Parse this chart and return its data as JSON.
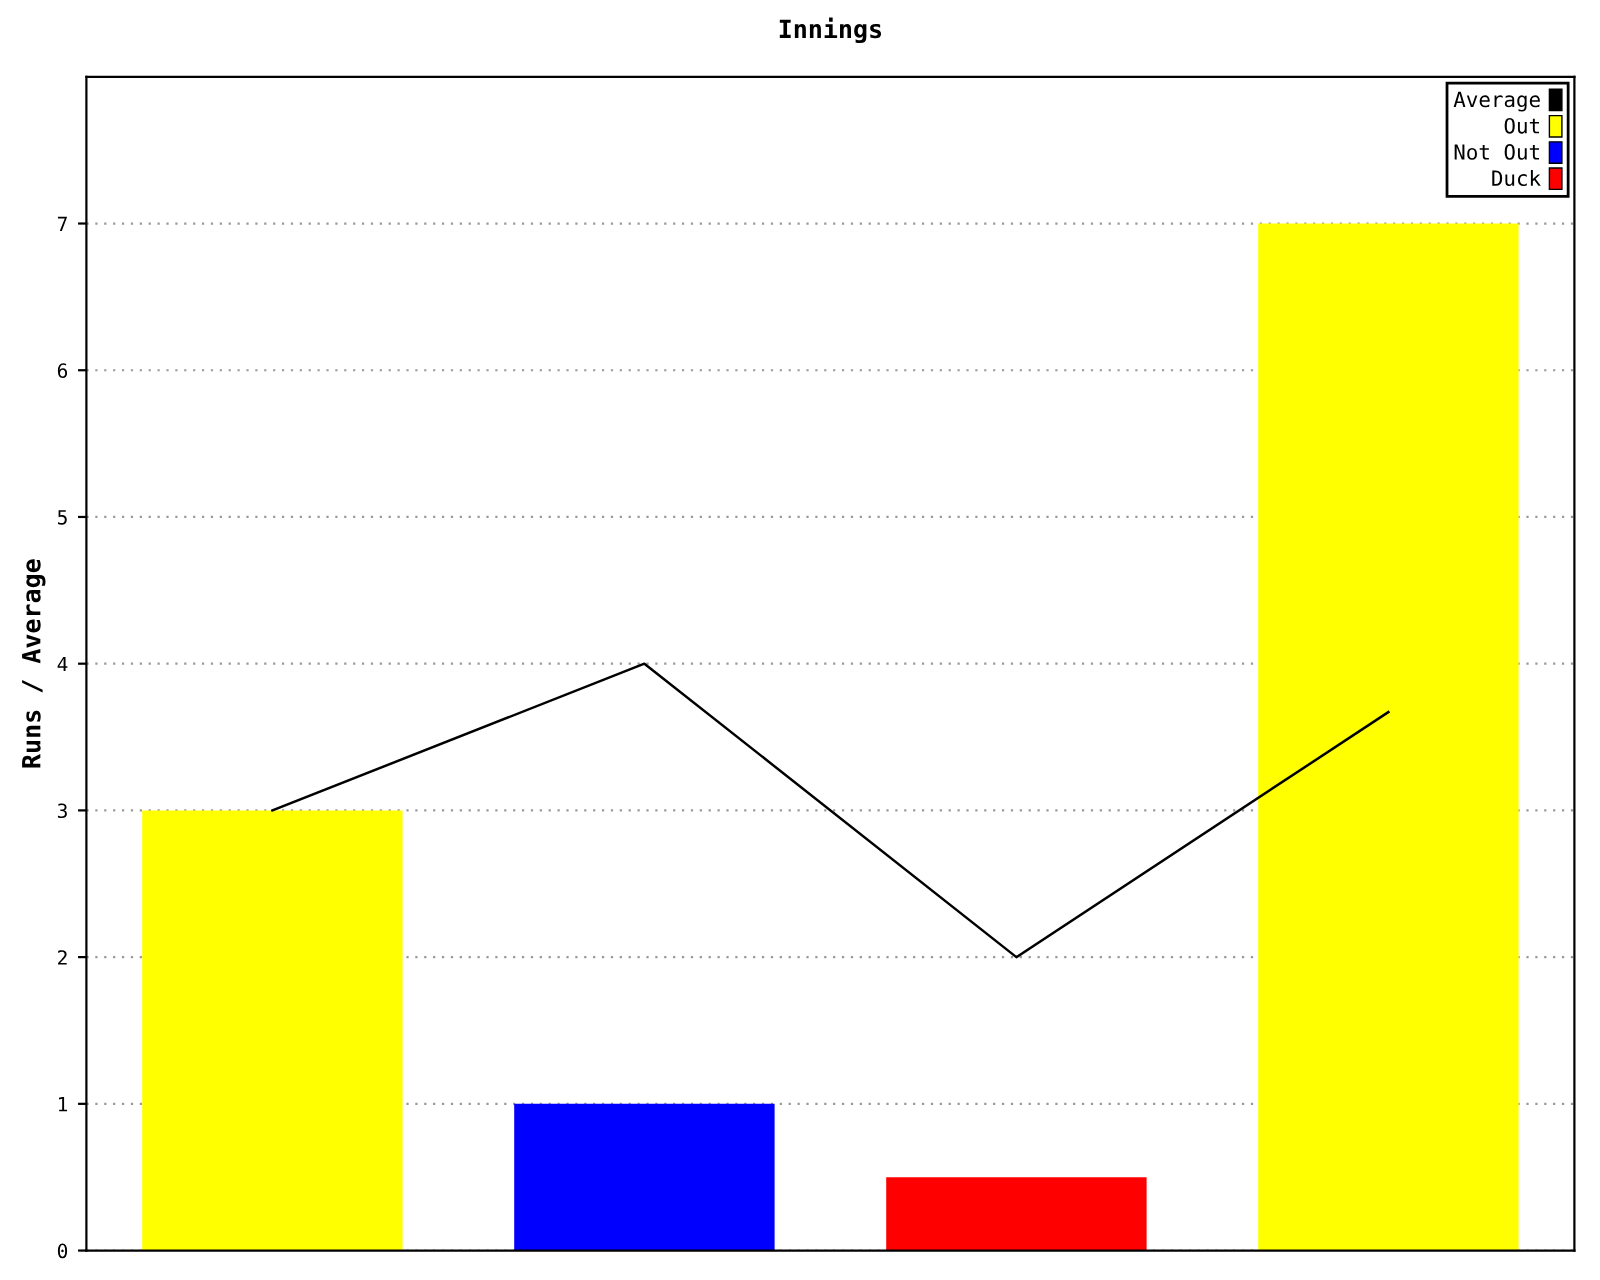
{
  "chart_data": {
    "type": "bar",
    "title": "Innings",
    "ylabel": "Runs / Average",
    "categories": [
      null,
      null,
      null,
      null
    ],
    "series": [
      {
        "name": "Average",
        "type": "line",
        "color": "#000000",
        "values": [
          3,
          4,
          2,
          3.67
        ]
      },
      {
        "name": "Out",
        "color": "#ffff00",
        "values": [
          3,
          null,
          null,
          7
        ]
      },
      {
        "name": "Not Out",
        "color": "#0000ff",
        "values": [
          null,
          1,
          null,
          null
        ]
      },
      {
        "name": "Duck",
        "color": "#ff0000",
        "values": [
          null,
          null,
          0.5,
          null
        ]
      }
    ],
    "ylim": [
      0,
      8
    ],
    "yticks": [
      0,
      1,
      2,
      3,
      4,
      5,
      6,
      7
    ],
    "grid": "y",
    "legend": "top right",
    "marker": "none",
    "line_style": "solid"
  }
}
